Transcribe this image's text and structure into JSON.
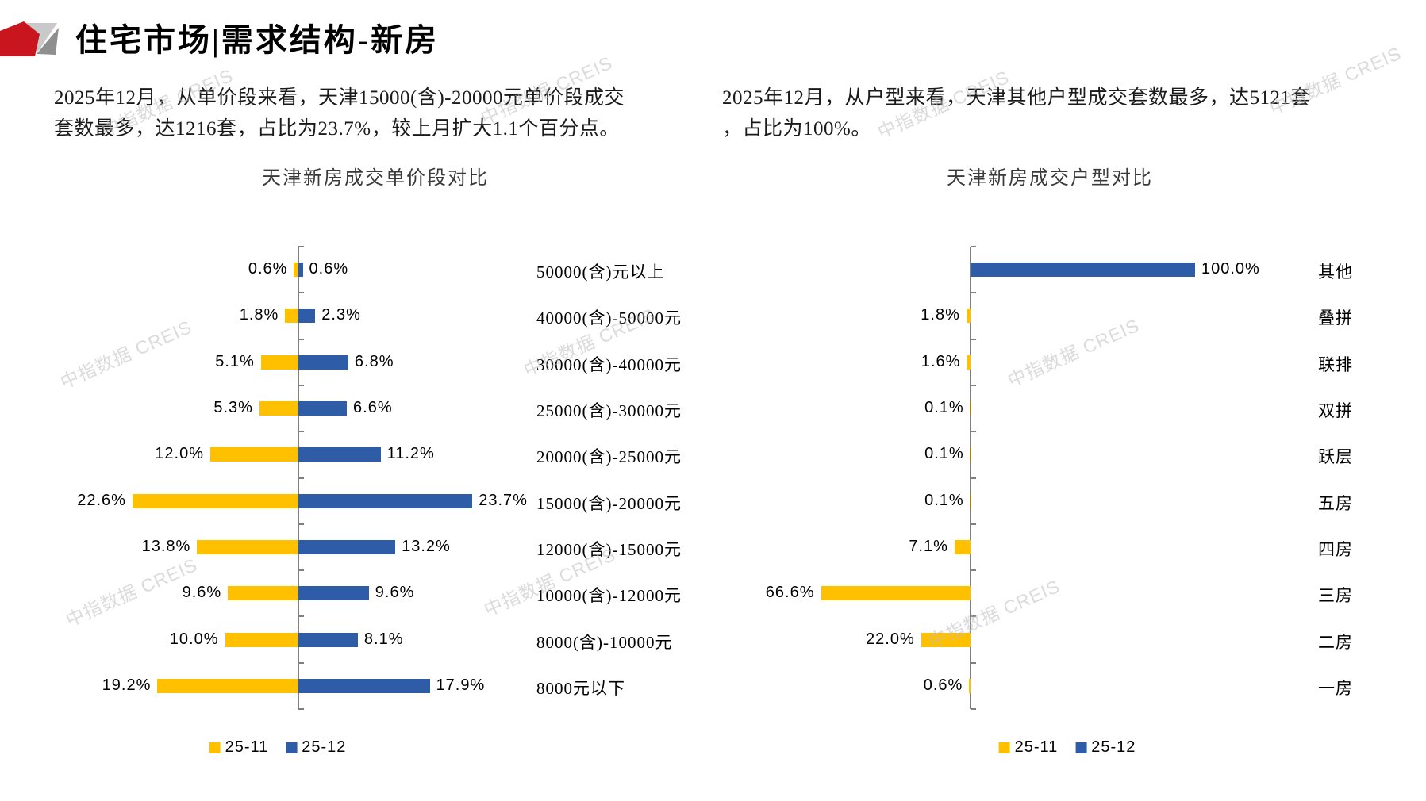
{
  "header": {
    "title": "住宅市场|需求结构-新房"
  },
  "watermark_text": "中指数据 CREIS",
  "paragraphs": {
    "left": "2025年12月，从单价段来看，天津15000(含)-20000元单价段成交\n套数最多，达1216套，占比为23.7%，较上月扩大1.1个百分点。",
    "right": "2025年12月，从户型来看，天津其他户型成交套数最多，达5121套\n，占比为100%。"
  },
  "colors": {
    "series_2511": "#FFC000",
    "series_2512": "#2E5CA6",
    "axis": "#7f7f7f",
    "logo_red": "#C9161E",
    "logo_gray_light": "#C9C9C9",
    "logo_gray_dark": "#8F8F8F"
  },
  "chart_data": [
    {
      "type": "bar",
      "variant": "diverging-horizontal",
      "title": "天津新房成交单价段对比",
      "legend": [
        "25-11",
        "25-12"
      ],
      "legend_position": "bottom",
      "grid": false,
      "xmax_pct": 25,
      "categories": [
        "50000(含)元以上",
        "40000(含)-50000元",
        "30000(含)-40000元",
        "25000(含)-30000元",
        "20000(含)-25000元",
        "15000(含)-20000元",
        "12000(含)-15000元",
        "10000(含)-12000元",
        "8000(含)-10000元",
        "8000元以下"
      ],
      "series": [
        {
          "name": "25-11",
          "side": "left",
          "values": [
            0.6,
            1.8,
            5.1,
            5.3,
            12.0,
            22.6,
            13.8,
            9.6,
            10.0,
            19.2
          ],
          "labels": [
            "0.6%",
            "1.8%",
            "5.1%",
            "5.3%",
            "12.0%",
            "22.6%",
            "13.8%",
            "9.6%",
            "10.0%",
            "19.2%"
          ]
        },
        {
          "name": "25-12",
          "side": "right",
          "values": [
            0.6,
            2.3,
            6.8,
            6.6,
            11.2,
            23.7,
            13.2,
            9.6,
            8.1,
            17.9
          ],
          "labels": [
            "0.6%",
            "2.3%",
            "6.8%",
            "6.6%",
            "11.2%",
            "23.7%",
            "13.2%",
            "9.6%",
            "8.1%",
            "17.9%"
          ]
        }
      ]
    },
    {
      "type": "bar",
      "variant": "diverging-horizontal",
      "title": "天津新房成交户型对比",
      "legend": [
        "25-11",
        "25-12"
      ],
      "legend_position": "bottom",
      "grid": false,
      "xmax_pct": 100,
      "categories": [
        "其他",
        "叠拼",
        "联排",
        "双拼",
        "跃层",
        "五房",
        "四房",
        "三房",
        "二房",
        "一房"
      ],
      "series": [
        {
          "name": "25-11",
          "side": "left",
          "values": [
            0,
            1.8,
            1.6,
            0.1,
            0.1,
            0.1,
            7.1,
            66.6,
            22.0,
            0.6
          ],
          "labels": [
            "",
            "1.8%",
            "1.6%",
            "0.1%",
            "0.1%",
            "0.1%",
            "7.1%",
            "66.6%",
            "22.0%",
            "0.6%"
          ]
        },
        {
          "name": "25-12",
          "side": "right",
          "values": [
            100.0,
            0,
            0,
            0,
            0,
            0,
            0,
            0,
            0,
            0
          ],
          "labels": [
            "100.0%",
            "",
            "",
            "",
            "",
            "",
            "",
            "",
            "",
            ""
          ]
        }
      ]
    }
  ]
}
